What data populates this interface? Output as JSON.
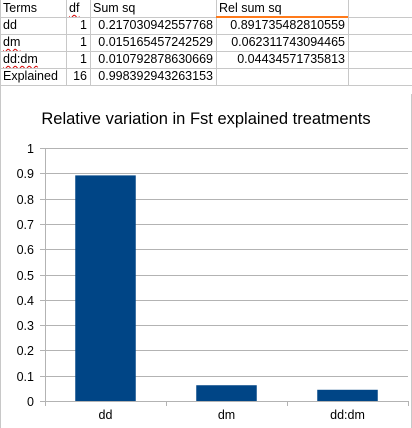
{
  "sheet": {
    "header": {
      "terms": "Terms",
      "df": "df",
      "sum_sq": "Sum sq",
      "rel_sum_sq": "Rel sum sq"
    },
    "rows": [
      {
        "term": "dd",
        "df": "1",
        "sum_sq": "0.217030942557768",
        "rel_sum_sq": "0.891735482810559"
      },
      {
        "term": "dm",
        "df": "1",
        "sum_sq": "0.015165457242529",
        "rel_sum_sq": "0.062311743094465"
      },
      {
        "term": "dd:dm",
        "df": "1",
        "sum_sq": "0.010792878630669",
        "rel_sum_sq": "0.04434571735813"
      },
      {
        "term": "Explained",
        "df": "16",
        "sum_sq": "0.998392943263153",
        "rel_sum_sq": ""
      }
    ],
    "colors": {
      "gridline": "#c8c8c8",
      "selection": "#ff7a1a",
      "spellcheck": "#d40000"
    }
  },
  "chart_data": {
    "type": "bar",
    "title": "Relative variation in Fst explained treatments",
    "categories": [
      "dd",
      "dm",
      "dd:dm"
    ],
    "values": [
      0.891735482810559,
      0.062311743094465,
      0.04434571735813
    ],
    "xlabel": "",
    "ylabel": "",
    "ylim": [
      0,
      1
    ],
    "yticks": [
      "0",
      "0.1",
      "0.2",
      "0.3",
      "0.4",
      "0.5",
      "0.6",
      "0.7",
      "0.8",
      "0.9",
      "1"
    ],
    "grid": "y-major",
    "legend": "none",
    "bar_color": "#004586",
    "gridline_color": "#b3b3b3"
  }
}
